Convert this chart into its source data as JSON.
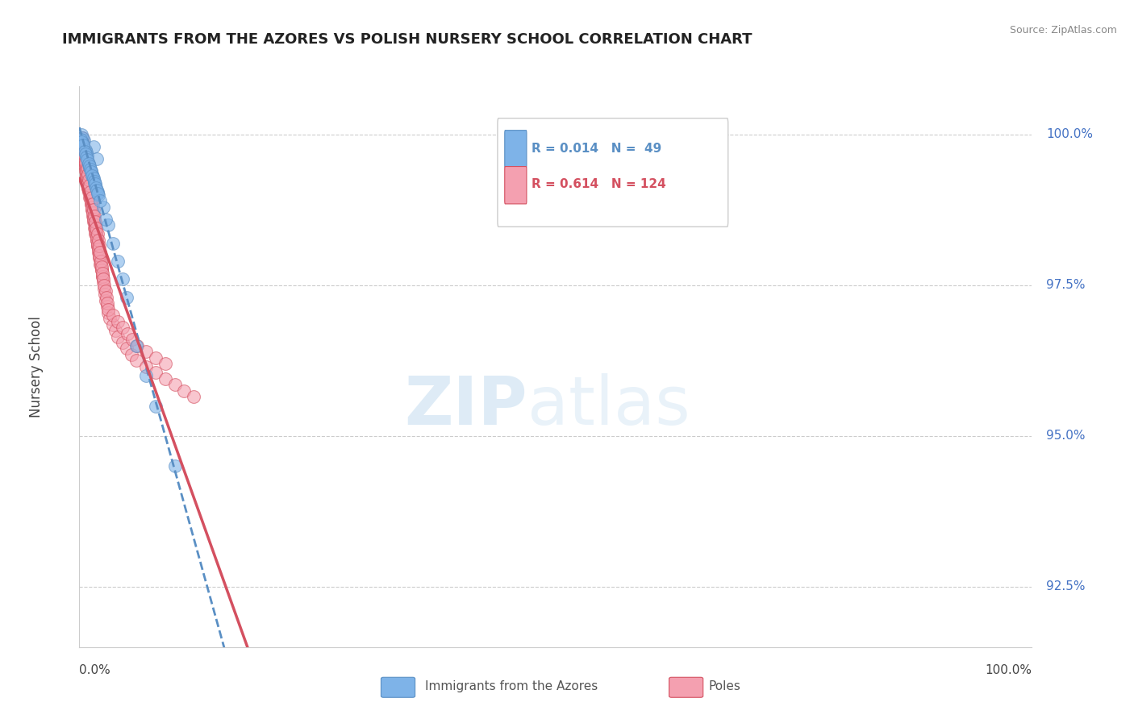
{
  "title": "IMMIGRANTS FROM THE AZORES VS POLISH NURSERY SCHOOL CORRELATION CHART",
  "source": "Source: ZipAtlas.com",
  "ylabel": "Nursery School",
  "yticks": [
    92.5,
    95.0,
    97.5,
    100.0
  ],
  "ytick_labels": [
    "92.5%",
    "95.0%",
    "97.5%",
    "100.0%"
  ],
  "xmin": 0.0,
  "xmax": 100.0,
  "ymin": 91.5,
  "ymax": 100.8,
  "azores_R": 0.014,
  "azores_N": 49,
  "poles_R": 0.614,
  "poles_N": 124,
  "azores_color": "#7eb3e8",
  "poles_color": "#f4a0b0",
  "azores_line_color": "#5a8fc4",
  "poles_line_color": "#d45060",
  "title_color": "#222222",
  "ytick_color": "#4472c4",
  "source_color": "#888888",
  "azores_x": [
    0.2,
    0.5,
    1.5,
    1.8,
    0.3,
    0.4,
    0.6,
    0.7,
    0.8,
    0.9,
    1.0,
    1.1,
    1.2,
    1.3,
    1.4,
    1.6,
    1.7,
    1.9,
    2.0,
    2.5,
    3.0,
    3.5,
    4.0,
    4.5,
    5.0,
    0.15,
    0.25,
    0.35,
    0.55,
    0.65,
    0.75,
    0.85,
    0.95,
    1.05,
    1.15,
    1.25,
    1.35,
    1.45,
    1.55,
    1.65,
    1.75,
    1.85,
    1.95,
    2.2,
    2.8,
    6.0,
    7.0,
    8.0,
    10.0
  ],
  "azores_y": [
    100.0,
    99.9,
    99.8,
    99.6,
    99.95,
    99.85,
    99.75,
    99.7,
    99.65,
    99.55,
    99.5,
    99.45,
    99.4,
    99.35,
    99.3,
    99.2,
    99.15,
    99.05,
    99.0,
    98.8,
    98.5,
    98.2,
    97.9,
    97.6,
    97.3,
    99.92,
    99.88,
    99.82,
    99.72,
    99.68,
    99.62,
    99.58,
    99.52,
    99.48,
    99.42,
    99.38,
    99.32,
    99.28,
    99.22,
    99.18,
    99.12,
    99.08,
    99.02,
    98.9,
    98.6,
    96.5,
    96.0,
    95.5,
    94.5
  ],
  "poles_x": [
    0.2,
    0.3,
    0.4,
    0.5,
    0.6,
    0.7,
    0.8,
    0.9,
    1.0,
    1.1,
    1.2,
    1.3,
    1.4,
    1.5,
    1.6,
    1.7,
    1.8,
    1.9,
    2.0,
    2.1,
    2.2,
    2.3,
    2.4,
    2.5,
    2.6,
    2.7,
    2.8,
    2.9,
    3.0,
    3.2,
    3.5,
    3.8,
    4.0,
    4.5,
    5.0,
    5.5,
    6.0,
    7.0,
    8.0,
    9.0,
    10.0,
    11.0,
    12.0,
    0.25,
    0.35,
    0.45,
    0.55,
    0.65,
    0.75,
    0.85,
    0.95,
    1.05,
    1.15,
    1.25,
    1.35,
    1.45,
    1.55,
    1.65,
    1.75,
    1.85,
    1.95,
    2.05,
    2.15,
    2.25,
    2.35,
    2.45,
    0.22,
    0.32,
    0.42,
    0.52,
    0.62,
    0.72,
    0.82,
    0.92,
    1.02,
    1.12,
    1.22,
    1.32,
    1.42,
    1.52,
    1.62,
    1.72,
    1.82,
    1.92,
    2.02,
    2.12,
    2.22,
    2.32,
    2.42,
    2.52,
    2.62,
    2.72,
    2.82,
    2.92,
    3.02,
    3.52,
    4.02,
    4.52,
    5.02,
    5.52,
    6.02,
    7.02,
    8.02,
    9.02,
    0.28,
    0.38,
    0.48,
    0.58,
    0.68,
    0.78,
    0.88,
    0.98,
    1.08,
    1.18,
    1.28,
    1.38,
    1.48,
    1.58,
    1.68,
    1.78,
    1.88,
    1.98,
    2.08,
    2.18
  ],
  "poles_y": [
    99.8,
    99.7,
    99.6,
    99.5,
    99.4,
    99.3,
    99.2,
    99.1,
    99.05,
    98.95,
    98.85,
    98.75,
    98.65,
    98.55,
    98.45,
    98.35,
    98.25,
    98.15,
    98.05,
    97.95,
    97.85,
    97.75,
    97.65,
    97.55,
    97.45,
    97.35,
    97.25,
    97.15,
    97.05,
    96.95,
    96.85,
    96.75,
    96.65,
    96.55,
    96.45,
    96.35,
    96.25,
    96.15,
    96.05,
    95.95,
    95.85,
    95.75,
    95.65,
    99.85,
    99.75,
    99.65,
    99.55,
    99.45,
    99.35,
    99.25,
    99.15,
    99.05,
    98.95,
    98.85,
    98.75,
    98.65,
    98.55,
    98.45,
    98.35,
    98.25,
    98.15,
    98.05,
    97.95,
    97.85,
    97.75,
    97.65,
    99.9,
    99.8,
    99.7,
    99.6,
    99.5,
    99.4,
    99.3,
    99.2,
    99.1,
    99.0,
    98.9,
    98.8,
    98.7,
    98.6,
    98.5,
    98.4,
    98.3,
    98.2,
    98.1,
    98.0,
    97.9,
    97.8,
    97.7,
    97.6,
    97.5,
    97.4,
    97.3,
    97.2,
    97.1,
    97.0,
    96.9,
    96.8,
    96.7,
    96.6,
    96.5,
    96.4,
    96.3,
    96.2,
    99.95,
    99.85,
    99.75,
    99.65,
    99.55,
    99.45,
    99.35,
    99.25,
    99.15,
    99.05,
    98.95,
    98.85,
    98.75,
    98.65,
    98.55,
    98.45,
    98.35,
    98.25,
    98.15,
    98.05
  ]
}
